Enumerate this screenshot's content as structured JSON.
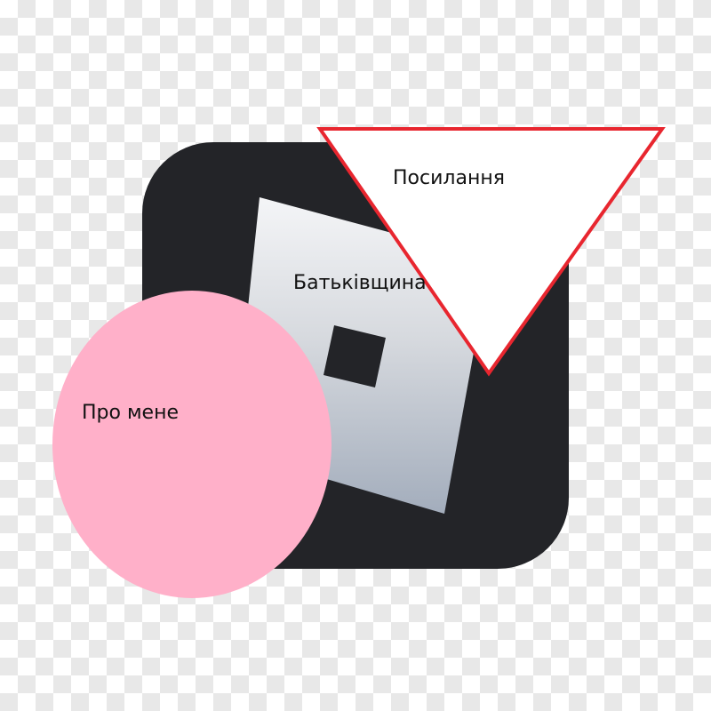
{
  "labels": {
    "home": "Батьківщина",
    "links": "Посилання",
    "about": "Про мене"
  },
  "icons": {
    "tile": "roblox-logo-icon"
  },
  "colors": {
    "tile": "#232428",
    "circle": "#ffb0c9",
    "triangle_fill": "#ffffff",
    "triangle_stroke": "#e8262f"
  }
}
